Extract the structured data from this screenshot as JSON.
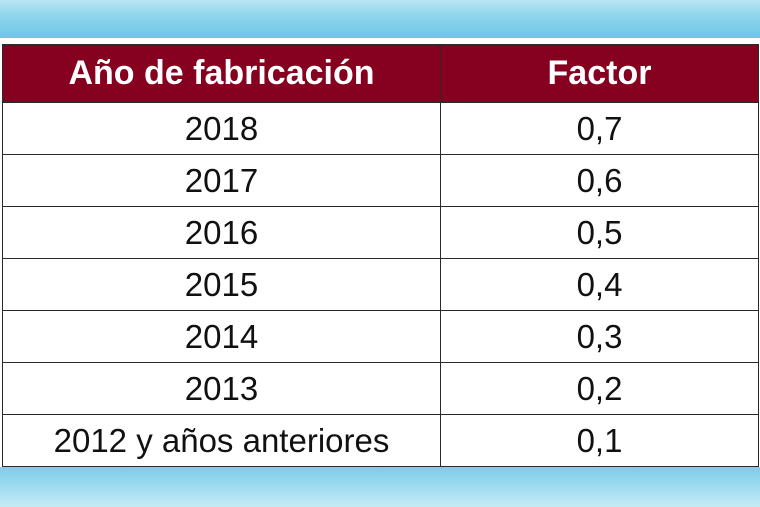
{
  "colors": {
    "header_bg": "#86001f",
    "header_text": "#ffffff",
    "band_blue": "#8fd5ec"
  },
  "table": {
    "headers": [
      "Año de fabricación",
      "Factor"
    ],
    "rows": [
      [
        "2018",
        "0,7"
      ],
      [
        "2017",
        "0,6"
      ],
      [
        "2016",
        "0,5"
      ],
      [
        "2015",
        "0,4"
      ],
      [
        "2014",
        "0,3"
      ],
      [
        "2013",
        "0,2"
      ],
      [
        "2012 y años anteriores",
        "0,1"
      ]
    ]
  }
}
